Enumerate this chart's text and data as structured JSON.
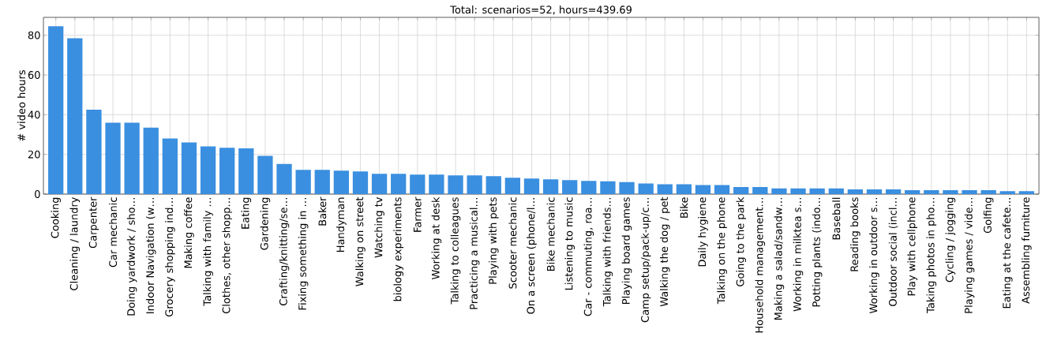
{
  "chart_data": {
    "type": "bar",
    "title": "Total: scenarios=52, hours=439.69",
    "ylabel": "# video hours",
    "categories": [
      "Cooking",
      "Cleaning / laundry",
      "Carpenter",
      "Car mechanic",
      "Doing yardwork / sho…",
      "Indoor Navigation (w…",
      "Grocery shopping ind…",
      "Making coffee",
      "Talking with family …",
      "Clothes, other shopp…",
      "Eating",
      "Gardening",
      "Crafting/knitting/se…",
      "Fixing something in …",
      "Baker",
      "Handyman",
      "Walking on street",
      "Watching tv",
      "biology experiments",
      "Farmer",
      "Working at desk",
      "Talking to colleagues",
      "Practicing a musical…",
      "Playing with pets",
      "Scooter mechanic",
      "On a screen (phone/l…",
      "Bike mechanic",
      "Listening to music",
      "Car - commuting, roa…",
      "Talking with friends…",
      "Playing board games",
      "Camp setup/pack-up/c…",
      "Walking the dog / pet",
      "Bike",
      "Daily hygiene",
      "Talking on the phone",
      "Going to the park",
      "Household management…",
      "Making a salad/sandw…",
      "Working in milktea s…",
      "Potting plants (indo…",
      "Baseball",
      "Reading books",
      "Working in outdoor s…",
      "Outdoor social (incl…",
      "Play with cellphone",
      "Taking photos in pho…",
      "Cycling / jogging",
      "Playing games / vide…",
      "Golfing",
      "Eating at the cafete…",
      "Assembling furniture"
    ],
    "values": [
      84.5,
      78.5,
      42.5,
      36,
      36,
      33.5,
      28,
      26,
      24,
      23.3,
      23,
      19.3,
      15.2,
      12.2,
      12.2,
      11.8,
      11.4,
      10.2,
      10.2,
      9.8,
      9.8,
      9.4,
      9.4,
      9,
      8.2,
      7.8,
      7.4,
      7,
      6.7,
      6.5,
      6.1,
      5.4,
      5,
      5,
      4.6,
      4.6,
      3.6,
      3.6,
      2.9,
      2.9,
      2.9,
      2.9,
      2.4,
      2.4,
      2.4,
      2,
      2,
      2,
      2,
      2,
      1.5,
      1.5
    ],
    "color": "#3a8fe0",
    "ylim": [
      0,
      89
    ],
    "yticks": [
      0,
      20,
      40,
      60,
      80
    ],
    "grid": true
  }
}
